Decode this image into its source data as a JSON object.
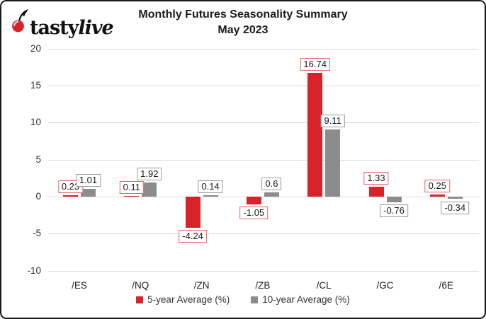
{
  "header": {
    "brand_bold": "tasty",
    "brand_italic": "live",
    "title_line1": "Monthly Futures Seasonality Summary",
    "title_line2": "May 2023"
  },
  "chart_data": {
    "type": "bar",
    "title": "Monthly Futures Seasonality Summary",
    "subtitle": "May 2023",
    "categories": [
      "/ES",
      "/NQ",
      "/ZN",
      "/ZB",
      "/CL",
      "/GC",
      "/6E"
    ],
    "series": [
      {
        "name": "5-year Average (%)",
        "color": "#d8232a",
        "label_border_color": "#e4636b",
        "values": [
          0.23,
          0.11,
          -4.24,
          -1.05,
          16.74,
          1.33,
          0.25
        ]
      },
      {
        "name": "10-year Average (%)",
        "color": "#8c8c8c",
        "label_border_color": "#9b9b9b",
        "values": [
          1.01,
          1.92,
          0.14,
          0.6,
          9.11,
          -0.76,
          -0.34
        ]
      }
    ],
    "ylim": [
      -10,
      20
    ],
    "yticks": [
      20,
      15,
      10,
      5,
      0,
      -5,
      -10
    ],
    "grid": true,
    "legend_position": "bottom",
    "gridline_color": "#d9d9d9",
    "data_label_bg": "#ffffff"
  }
}
